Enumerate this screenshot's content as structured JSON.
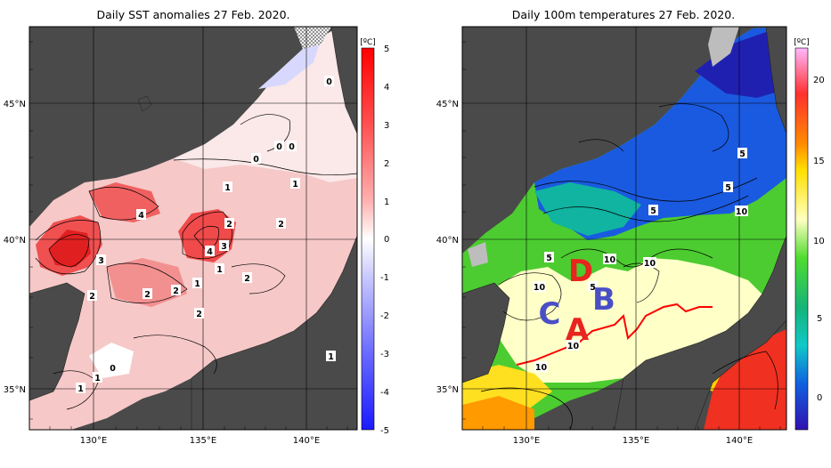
{
  "maps": [
    {
      "title": "Daily SST anomalies 27 Feb. 2020.",
      "colorbar": {
        "unit": "[ºC]",
        "ticks": [
          "5",
          "4",
          "3",
          "2",
          "1",
          "0",
          "-1",
          "-2",
          "-3",
          "-4",
          "-5"
        ],
        "min_color": "#1a1aff",
        "mid_color": "#ffffff",
        "max_color": "#ff0000"
      },
      "lat_ticks": [
        "45°N",
        "40°N",
        "35°N"
      ],
      "lon_ticks": [
        "130°E",
        "135°E",
        "140°E"
      ],
      "contour_labels": [
        "4",
        "3",
        "2",
        "2",
        "2",
        "2",
        "4",
        "3",
        "2",
        "1",
        "2",
        "1",
        "2",
        "1",
        "0",
        "0",
        "0",
        "0",
        "1",
        "1",
        "0",
        "1",
        "1"
      ]
    },
    {
      "title": "Daily 100m temperatures 27 Feb. 2020.",
      "colorbar": {
        "unit": "[ºC]",
        "ticks": [
          "20",
          "15",
          "10",
          "5",
          "0"
        ]
      },
      "lat_ticks": [
        "45°N",
        "40°N",
        "35°N"
      ],
      "lon_ticks": [
        "130°E",
        "135°E",
        "140°E"
      ],
      "contour_labels": [
        "5",
        "5",
        "5",
        "5",
        "10",
        "10",
        "10",
        "10",
        "5",
        "10",
        "10"
      ],
      "region_labels": [
        {
          "text": "D",
          "color": "#e8251e"
        },
        {
          "text": "B",
          "color": "#4a4fc6"
        },
        {
          "text": "C",
          "color": "#4a4fc6"
        },
        {
          "text": "A",
          "color": "#e8251e"
        }
      ]
    }
  ]
}
